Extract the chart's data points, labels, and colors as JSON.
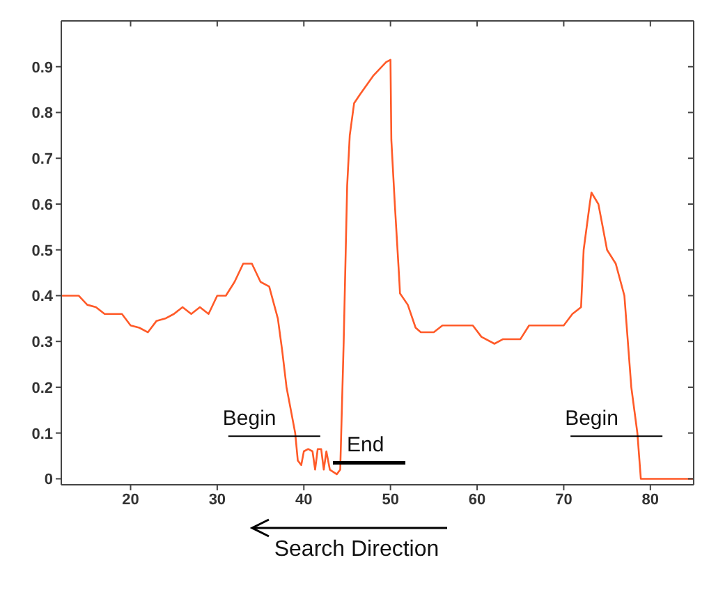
{
  "chart_data": {
    "type": "line",
    "x": [
      12,
      14,
      15,
      16,
      17,
      19,
      20,
      21,
      22,
      23,
      24,
      25,
      26,
      27,
      28,
      29,
      30,
      31,
      32,
      33,
      34,
      35,
      36,
      37,
      37.5,
      38,
      38.5,
      39,
      39.3,
      39.7,
      40,
      40.5,
      41,
      41.3,
      41.6,
      42,
      42.3,
      42.6,
      43,
      43.8,
      44.2,
      44.6,
      45,
      45.3,
      45.8,
      46.5,
      48,
      49.5,
      50,
      50.1,
      50.5,
      51,
      51.1,
      52,
      52.9,
      53.5,
      55,
      56,
      59.5,
      60.5,
      62,
      63,
      65,
      66,
      70,
      71,
      72,
      72.3,
      73,
      73.2,
      74,
      74.5,
      75,
      76,
      77,
      77.8,
      78.5,
      78.9,
      85
    ],
    "series": [
      {
        "color": "#ff5a28",
        "values": [
          0.4,
          0.4,
          0.38,
          0.375,
          0.36,
          0.36,
          0.335,
          0.33,
          0.32,
          0.345,
          0.35,
          0.36,
          0.375,
          0.36,
          0.375,
          0.36,
          0.4,
          0.4,
          0.43,
          0.47,
          0.47,
          0.43,
          0.42,
          0.35,
          0.28,
          0.2,
          0.15,
          0.1,
          0.04,
          0.03,
          0.06,
          0.065,
          0.06,
          0.02,
          0.065,
          0.065,
          0.02,
          0.06,
          0.02,
          0.01,
          0.02,
          0.3,
          0.64,
          0.75,
          0.82,
          0.84,
          0.88,
          0.91,
          0.915,
          0.74,
          0.6,
          0.44,
          0.405,
          0.38,
          0.33,
          0.32,
          0.32,
          0.335,
          0.335,
          0.31,
          0.295,
          0.305,
          0.305,
          0.335,
          0.335,
          0.36,
          0.375,
          0.5,
          0.6,
          0.625,
          0.6,
          0.55,
          0.5,
          0.47,
          0.4,
          0.2,
          0.1,
          0,
          0
        ]
      }
    ],
    "xlim": [
      12,
      85
    ],
    "xticks": [
      20,
      30,
      40,
      50,
      60,
      70,
      80
    ],
    "ylim": [
      -0.013,
      1
    ],
    "yticks": [
      0,
      0.1,
      0.2,
      0.3,
      0.4,
      0.5,
      0.6,
      0.7,
      0.8,
      0.9
    ],
    "marker": "none",
    "line_style": "solid",
    "annotations": [
      {
        "text": "Begin",
        "x": 39,
        "y": 0.093
      },
      {
        "text": "End",
        "x": 44,
        "y": 0.035
      },
      {
        "text": "Begin",
        "x": 78.5,
        "y": 0.093
      },
      "Search Direction"
    ]
  }
}
